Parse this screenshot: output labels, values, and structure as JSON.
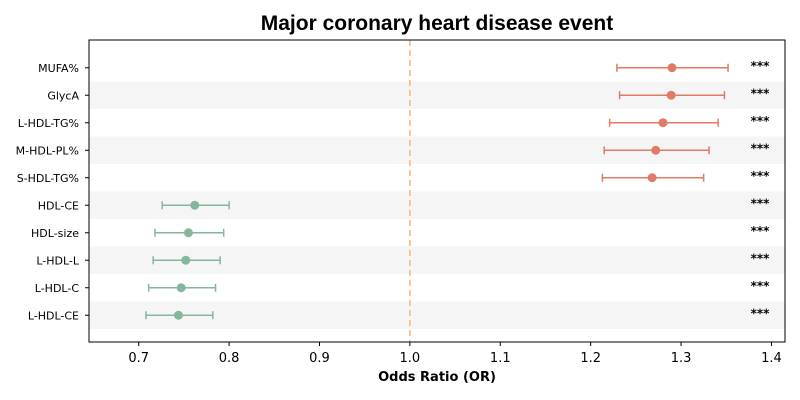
{
  "chart_data": {
    "type": "forest",
    "title": "Major coronary heart disease event",
    "xlabel": "Odds Ratio (OR)",
    "xlim": [
      0.645,
      1.415
    ],
    "xticks": [
      "0.7",
      "0.8",
      "0.9",
      "1.0",
      "1.1",
      "1.2",
      "1.3",
      "1.4"
    ],
    "reference_line": 1.0,
    "grid": false,
    "colors": {
      "positive": "#e07b67",
      "negative": "#86b59d",
      "reference": "#f5b87a",
      "band": "#f5f5f5"
    },
    "rows": [
      {
        "label": "MUFA%",
        "or": 1.29,
        "lower": 1.229,
        "upper": 1.352,
        "sig": "***"
      },
      {
        "label": "GlycA",
        "or": 1.289,
        "lower": 1.232,
        "upper": 1.348,
        "sig": "***"
      },
      {
        "label": "L-HDL-TG%",
        "or": 1.28,
        "lower": 1.221,
        "upper": 1.341,
        "sig": "***"
      },
      {
        "label": "M-HDL-PL%",
        "or": 1.272,
        "lower": 1.215,
        "upper": 1.331,
        "sig": "***"
      },
      {
        "label": "S-HDL-TG%",
        "or": 1.268,
        "lower": 1.213,
        "upper": 1.325,
        "sig": "***"
      },
      {
        "label": "HDL-CE",
        "or": 0.762,
        "lower": 0.726,
        "upper": 0.8,
        "sig": "***"
      },
      {
        "label": "HDL-size",
        "or": 0.755,
        "lower": 0.718,
        "upper": 0.794,
        "sig": "***"
      },
      {
        "label": "L-HDL-L",
        "or": 0.752,
        "lower": 0.716,
        "upper": 0.79,
        "sig": "***"
      },
      {
        "label": "L-HDL-C",
        "or": 0.747,
        "lower": 0.711,
        "upper": 0.785,
        "sig": "***"
      },
      {
        "label": "L-HDL-CE",
        "or": 0.744,
        "lower": 0.708,
        "upper": 0.782,
        "sig": "***"
      }
    ]
  }
}
